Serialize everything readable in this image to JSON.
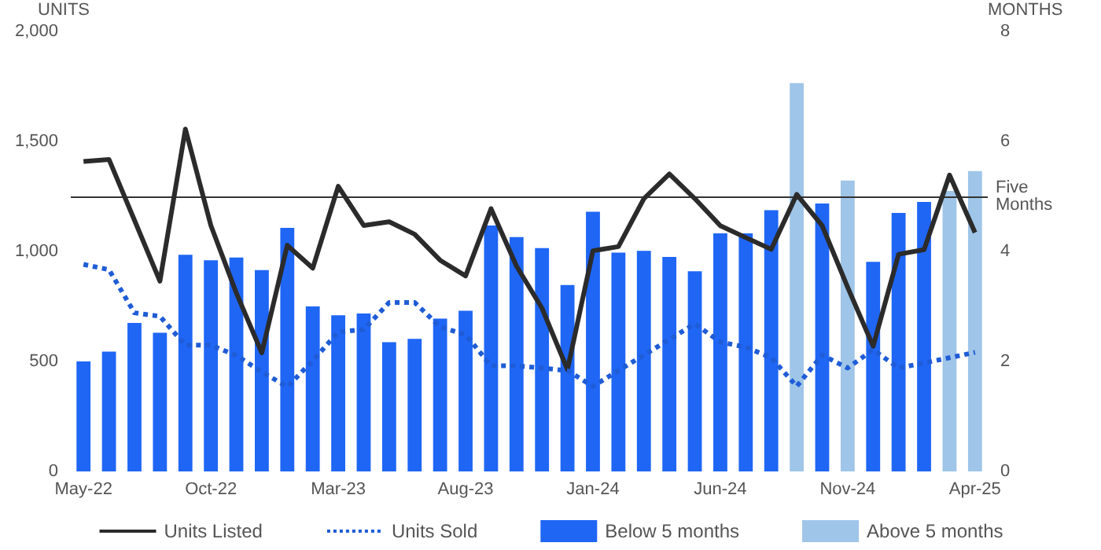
{
  "chart_data": {
    "type": "bar",
    "categories": [
      "May-22",
      null,
      null,
      null,
      null,
      "Oct-22",
      null,
      null,
      null,
      null,
      "Mar-23",
      null,
      null,
      null,
      null,
      "Aug-23",
      null,
      null,
      null,
      null,
      "Jan-24",
      null,
      null,
      null,
      null,
      "Jun-24",
      null,
      null,
      null,
      null,
      "Nov-24",
      null,
      null,
      null,
      null,
      "Apr-25"
    ],
    "ylabel": "UNITS",
    "y2label": "MONTHS",
    "ylim": [
      0,
      2000
    ],
    "yticks": [
      0,
      {
        "value": 500,
        "label": "500"
      },
      {
        "value": 1000,
        "label": "1,000"
      },
      {
        "value": 1500,
        "label": "1,500"
      },
      {
        "value": 2000,
        "label": "2,000"
      }
    ],
    "y2lim": [
      0,
      8
    ],
    "y2ticks": [
      0,
      2,
      4,
      6,
      8
    ],
    "series": [
      {
        "name": "Units Listed",
        "type": "line",
        "color": "#2b2b2b",
        "line_style": "solid",
        "values": [
          1409,
          1418,
          1142,
          865,
          1556,
          1118,
          811,
          539,
          1028,
          924,
          1296,
          1118,
          1135,
          1078,
          960,
          889,
          1194,
          933,
          742,
          463,
          1003,
          1022,
          1240,
          1352,
          1240,
          1117,
          1063,
          1010,
          1259,
          1117,
          837,
          569,
          987,
          1008,
          1347,
          1086
        ]
      },
      {
        "name": "Units Sold",
        "type": "line",
        "color": "#1f5cd6",
        "line_style": "dotted",
        "values": [
          941,
          917,
          721,
          705,
          574,
          574,
          527,
          452,
          385,
          503,
          634,
          645,
          768,
          768,
          657,
          622,
          480,
          480,
          470,
          458,
          387,
          458,
          529,
          600,
          671,
          588,
          565,
          517,
          387,
          529,
          470,
          553,
          470,
          493,
          517,
          541
        ]
      },
      {
        "name": "Below 5 months",
        "axis": "y2",
        "color": "#1f66f5",
        "values": [
          2.0,
          2.18,
          2.7,
          2.52,
          3.94,
          3.84,
          3.89,
          3.66,
          4.43,
          3.0,
          2.84,
          2.87,
          2.35,
          2.41,
          2.78,
          2.92,
          4.47,
          4.26,
          4.06,
          3.39,
          4.72,
          3.98,
          4.01,
          3.9,
          3.64,
          4.33,
          4.33,
          4.75,
          null,
          4.87,
          null,
          3.81,
          4.7,
          4.9,
          null,
          null
        ]
      },
      {
        "name": "Above 5 months",
        "axis": "y2",
        "color": "#9fc5e8",
        "values": [
          null,
          null,
          null,
          null,
          null,
          null,
          null,
          null,
          null,
          null,
          null,
          null,
          null,
          null,
          null,
          null,
          null,
          null,
          null,
          null,
          null,
          null,
          null,
          null,
          null,
          null,
          null,
          null,
          7.06,
          null,
          5.29,
          null,
          null,
          null,
          5.1,
          5.46
        ]
      }
    ],
    "ref_lines": [
      {
        "axis": "y2",
        "value": 5,
        "label": "Five Months",
        "color": "#333333"
      }
    ],
    "legend": "bottom",
    "grid": false
  }
}
